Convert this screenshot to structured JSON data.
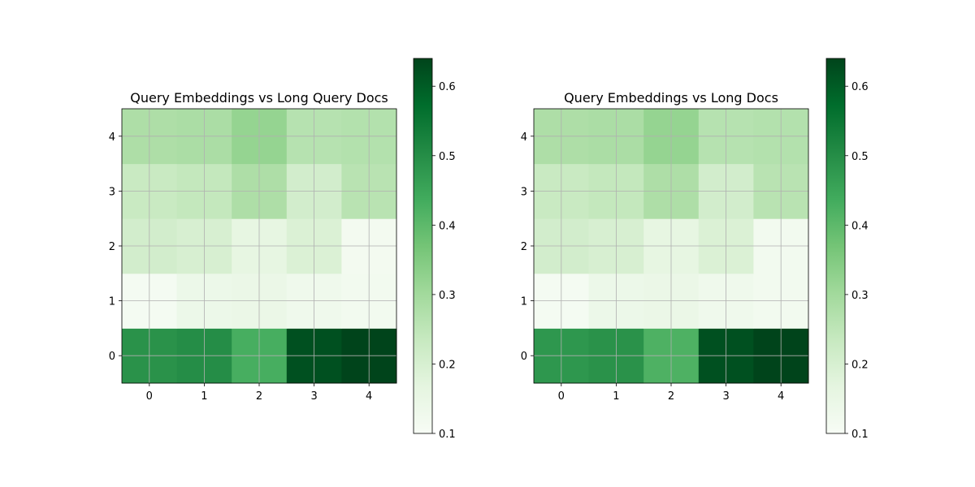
{
  "chart_data": [
    {
      "type": "heatmap",
      "title": "Query Embeddings vs Long Query Docs",
      "xlabel": "",
      "ylabel": "",
      "x_ticks": [
        "0",
        "1",
        "2",
        "3",
        "4"
      ],
      "y_ticks": [
        "0",
        "1",
        "2",
        "3",
        "4"
      ],
      "matrix": [
        [
          0.49,
          0.5,
          0.43,
          0.62,
          0.64
        ],
        [
          0.11,
          0.14,
          0.145,
          0.13,
          0.12
        ],
        [
          0.21,
          0.2,
          0.16,
          0.19,
          0.115
        ],
        [
          0.23,
          0.24,
          0.28,
          0.21,
          0.26
        ],
        [
          0.28,
          0.285,
          0.32,
          0.265,
          0.27
        ]
      ],
      "colormap": "Greens",
      "vmin": 0.1,
      "vmax": 0.64,
      "colorbar_ticks": [
        "0.1",
        "0.2",
        "0.3",
        "0.4",
        "0.5",
        "0.6"
      ],
      "grid": true
    },
    {
      "type": "heatmap",
      "title": "Query Embeddings vs Long Docs",
      "xlabel": "",
      "ylabel": "",
      "x_ticks": [
        "0",
        "1",
        "2",
        "3",
        "4"
      ],
      "y_ticks": [
        "0",
        "1",
        "2",
        "3",
        "4"
      ],
      "matrix": [
        [
          0.48,
          0.49,
          0.42,
          0.62,
          0.64
        ],
        [
          0.11,
          0.14,
          0.145,
          0.13,
          0.12
        ],
        [
          0.21,
          0.2,
          0.16,
          0.19,
          0.12
        ],
        [
          0.23,
          0.24,
          0.28,
          0.21,
          0.26
        ],
        [
          0.28,
          0.285,
          0.32,
          0.265,
          0.27
        ]
      ],
      "colormap": "Greens",
      "vmin": 0.1,
      "vmax": 0.64,
      "colorbar_ticks": [
        "0.1",
        "0.2",
        "0.3",
        "0.4",
        "0.5",
        "0.6"
      ],
      "grid": true
    }
  ]
}
